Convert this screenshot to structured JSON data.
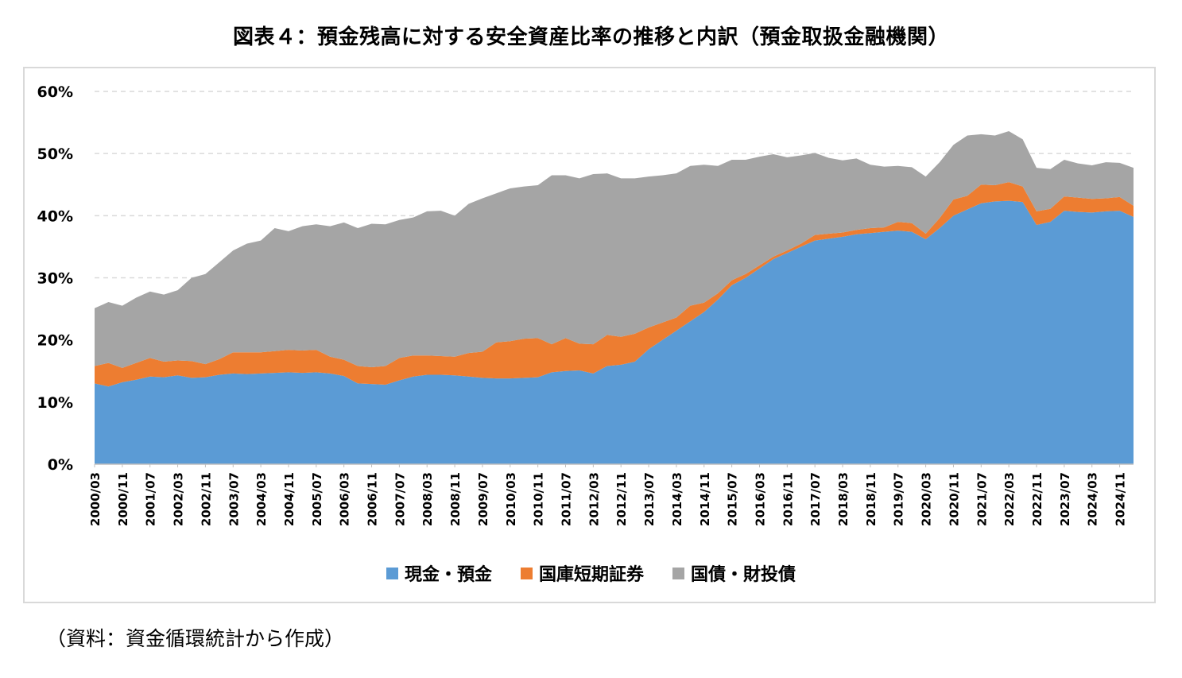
{
  "title": "図表４：預金残高に対する安全資産比率の推移と内訳（預金取扱金融機関）",
  "source": "（資料：資金循環統計から作成）",
  "colors": {
    "cash": "#5b9bd5",
    "tbill": "#ed7d31",
    "jgb": "#a5a5a5",
    "grid": "#d9d9d9"
  },
  "chart_data": {
    "type": "area",
    "stacked": true,
    "ylim": [
      0,
      60
    ],
    "yticks": [
      "0%",
      "10%",
      "20%",
      "30%",
      "40%",
      "50%",
      "60%"
    ],
    "grid": "horizontal dashed",
    "legend_position": "bottom",
    "x_tick_labels": [
      "2000/03",
      "2000/11",
      "2001/07",
      "2002/03",
      "2002/11",
      "2003/07",
      "2004/03",
      "2004/11",
      "2005/07",
      "2006/03",
      "2006/11",
      "2007/07",
      "2008/03",
      "2008/11",
      "2009/07",
      "2010/03",
      "2010/11",
      "2011/07",
      "2012/03",
      "2012/11",
      "2013/07",
      "2014/03",
      "2014/11",
      "2015/07",
      "2016/03",
      "2016/11",
      "2017/07",
      "2018/03",
      "2018/11",
      "2019/07",
      "2020/03",
      "2020/11",
      "2021/07",
      "2022/03",
      "2022/11",
      "2023/07",
      "2024/03",
      "2024/11"
    ],
    "x": [
      "2000/03",
      "2000/07",
      "2000/11",
      "2001/03",
      "2001/07",
      "2001/11",
      "2002/03",
      "2002/07",
      "2002/11",
      "2003/03",
      "2003/07",
      "2003/11",
      "2004/03",
      "2004/07",
      "2004/11",
      "2005/03",
      "2005/07",
      "2005/11",
      "2006/03",
      "2006/07",
      "2006/11",
      "2007/03",
      "2007/07",
      "2007/11",
      "2008/03",
      "2008/07",
      "2008/11",
      "2009/03",
      "2009/07",
      "2009/11",
      "2010/03",
      "2010/07",
      "2010/11",
      "2011/03",
      "2011/07",
      "2011/11",
      "2012/03",
      "2012/07",
      "2012/11",
      "2013/03",
      "2013/07",
      "2013/11",
      "2014/03",
      "2014/07",
      "2014/11",
      "2015/03",
      "2015/07",
      "2015/11",
      "2016/03",
      "2016/07",
      "2016/11",
      "2017/03",
      "2017/07",
      "2017/11",
      "2018/03",
      "2018/07",
      "2018/11",
      "2019/03",
      "2019/07",
      "2019/11",
      "2020/03",
      "2020/07",
      "2020/11",
      "2021/03",
      "2021/07",
      "2021/11",
      "2022/03",
      "2022/07",
      "2022/11",
      "2023/03",
      "2023/07",
      "2023/11",
      "2024/03",
      "2024/07",
      "2024/11",
      "2025/03"
    ],
    "series": [
      {
        "name": "現金・預金",
        "color": "#5b9bd5",
        "values": [
          13.0,
          12.5,
          13.2,
          13.6,
          14.1,
          14.0,
          14.3,
          13.9,
          14.0,
          14.4,
          14.6,
          14.5,
          14.6,
          14.7,
          14.8,
          14.7,
          14.8,
          14.6,
          14.2,
          13.0,
          12.9,
          12.8,
          13.5,
          14.1,
          14.4,
          14.4,
          14.3,
          14.1,
          13.9,
          13.8,
          13.8,
          13.9,
          14.0,
          14.8,
          15.0,
          15.1,
          14.6,
          15.8,
          16.0,
          16.5,
          18.5,
          20.0,
          21.5,
          23.0,
          24.5,
          26.5,
          28.8,
          30.0,
          31.5,
          33.0,
          34.0,
          35.0,
          36.0,
          36.3,
          36.6,
          37.0,
          37.2,
          37.4,
          37.6,
          37.4,
          36.2,
          38.0,
          40.0,
          41.0,
          42.0,
          42.3,
          42.4,
          42.2,
          38.5,
          39.0,
          40.8,
          40.6,
          40.5,
          40.7,
          40.8,
          39.8
        ]
      },
      {
        "name": "国庫短期証券",
        "color": "#ed7d31",
        "values": [
          2.8,
          3.8,
          2.3,
          2.7,
          3.0,
          2.5,
          2.4,
          2.7,
          2.1,
          2.5,
          3.4,
          3.5,
          3.4,
          3.5,
          3.6,
          3.6,
          3.6,
          2.7,
          2.6,
          2.8,
          2.7,
          3.0,
          3.6,
          3.4,
          3.1,
          3.0,
          3.0,
          3.8,
          4.2,
          5.8,
          6.0,
          6.3,
          6.3,
          4.5,
          5.3,
          4.3,
          4.7,
          5.0,
          4.5,
          4.5,
          3.5,
          2.8,
          2.1,
          2.5,
          1.5,
          1.0,
          0.8,
          0.6,
          0.5,
          0.4,
          0.4,
          0.5,
          0.9,
          0.8,
          0.7,
          0.7,
          0.8,
          0.7,
          1.4,
          1.4,
          0.9,
          1.6,
          2.6,
          2.2,
          3.0,
          2.6,
          3.0,
          2.5,
          2.2,
          2.1,
          2.3,
          2.3,
          2.2,
          2.1,
          2.2,
          1.8
        ]
      },
      {
        "name": "国債・財投債",
        "color": "#a5a5a5",
        "values": [
          9.3,
          9.8,
          10.0,
          10.5,
          10.7,
          10.8,
          11.3,
          13.4,
          14.5,
          15.6,
          16.4,
          17.5,
          18.0,
          19.8,
          19.1,
          20.0,
          20.2,
          21.0,
          22.1,
          22.2,
          23.1,
          22.8,
          22.2,
          22.2,
          23.2,
          23.4,
          22.7,
          24.0,
          24.7,
          24.0,
          24.6,
          24.5,
          24.6,
          27.2,
          26.2,
          26.6,
          27.4,
          26.0,
          25.5,
          25.0,
          24.3,
          23.7,
          23.2,
          22.5,
          22.2,
          20.5,
          19.4,
          18.4,
          17.5,
          16.5,
          15.0,
          14.2,
          13.2,
          12.2,
          11.6,
          11.5,
          10.2,
          9.8,
          9.0,
          9.0,
          9.2,
          9.0,
          8.8,
          9.7,
          8.1,
          8.0,
          8.2,
          7.6,
          7.0,
          6.4,
          5.9,
          5.5,
          5.4,
          5.8,
          5.5,
          6.1
        ]
      }
    ]
  }
}
